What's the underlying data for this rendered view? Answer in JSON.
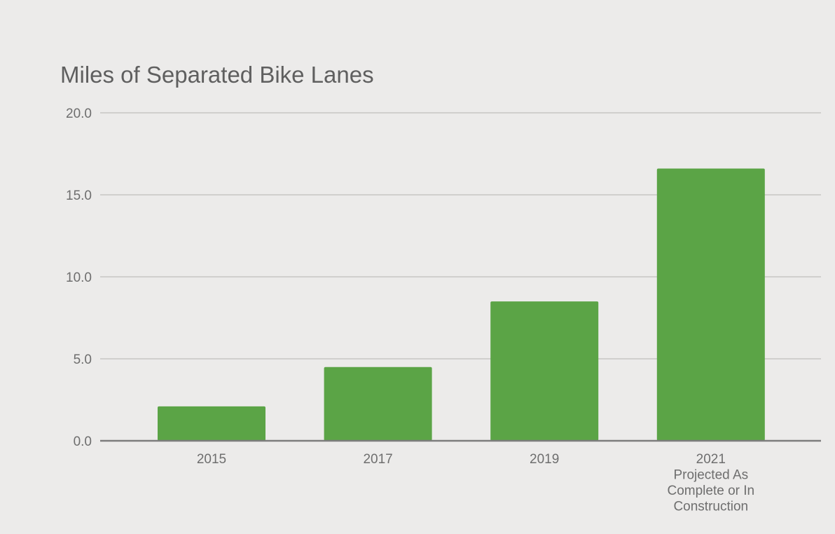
{
  "chart_data": {
    "type": "bar",
    "title": "Miles of Separated Bike Lanes",
    "xlabel": "",
    "ylabel": "",
    "categories": [
      [
        "2015"
      ],
      [
        "2017"
      ],
      [
        "2019"
      ],
      [
        "2021",
        "Projected As",
        "Complete or In",
        "Construction"
      ]
    ],
    "values": [
      2.1,
      4.5,
      8.5,
      16.6
    ],
    "ylim": [
      0,
      20
    ],
    "yticks": [
      "0.0",
      "5.0",
      "10.0",
      "15.0",
      "20.0"
    ],
    "ytick_values": [
      0,
      5,
      10,
      15,
      20
    ],
    "grid": true,
    "legend": "none",
    "bar_color": "#5ba446",
    "grid_color": "#d0cfcd",
    "axis_color": "#7d7d7d",
    "text_color": "#6e6e6e",
    "title_color": "#5f5f5f"
  }
}
